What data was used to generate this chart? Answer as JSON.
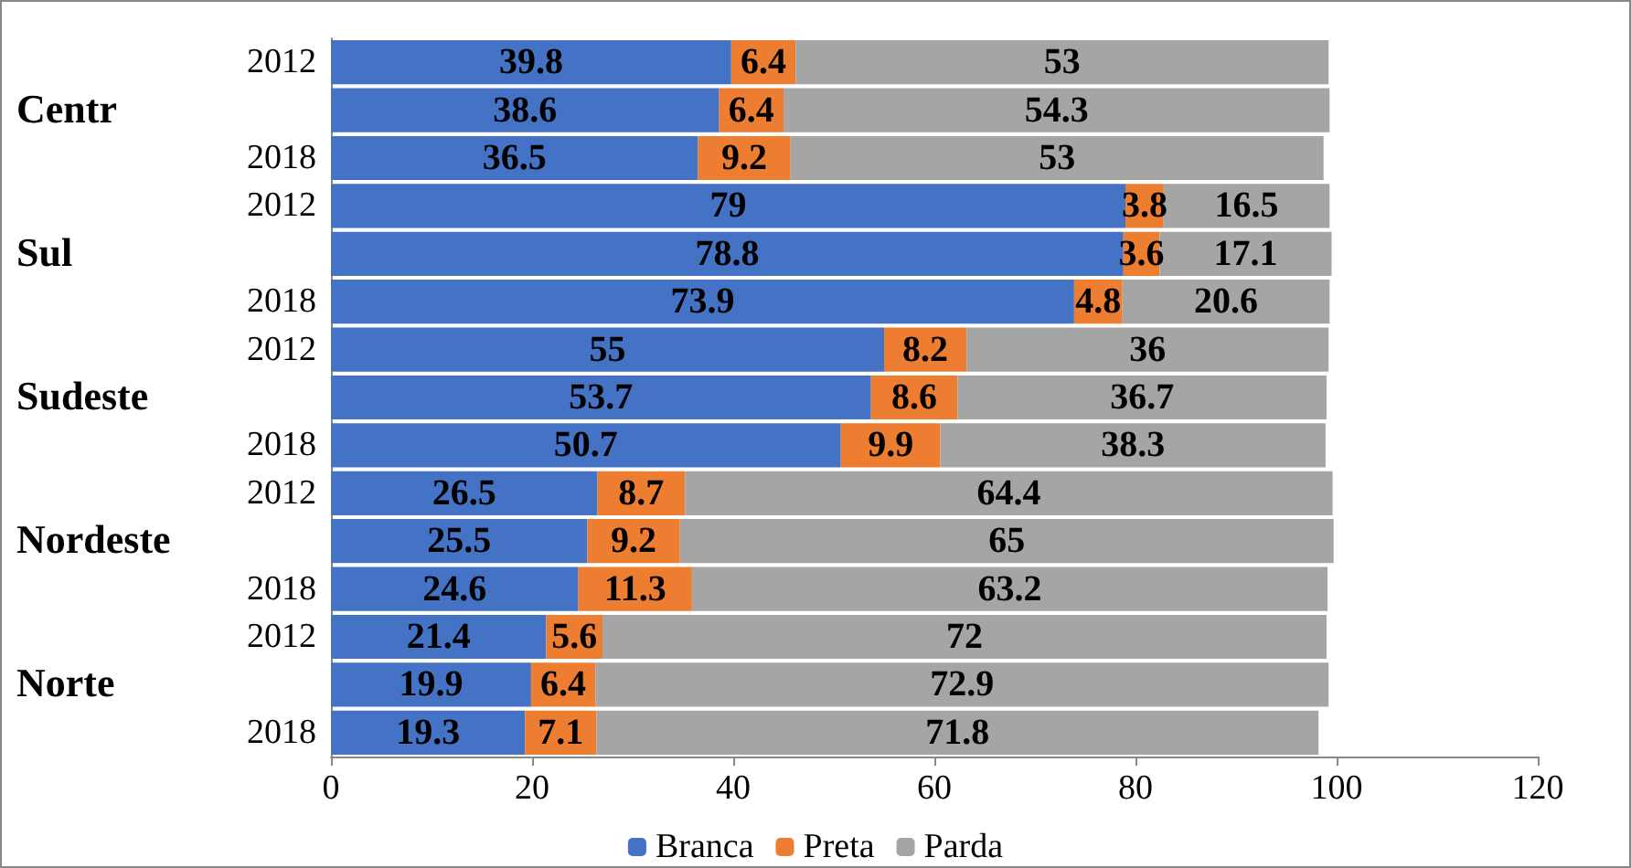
{
  "chart_data": {
    "type": "bar",
    "orientation": "horizontal",
    "stacked": true,
    "data_labels": true,
    "legend": "bottom",
    "grid": false,
    "categories": [
      "2012",
      null,
      "2018",
      "2012",
      null,
      "2018",
      "2012",
      null,
      "2018",
      "2012",
      null,
      "2018",
      "2012",
      null,
      "2018"
    ],
    "annotations": [
      "Centr",
      "Sul",
      "Sudeste",
      "Nordeste",
      "Norte"
    ],
    "xlim": [
      0,
      120
    ],
    "xticks": [
      0,
      20,
      40,
      60,
      80,
      100,
      120
    ],
    "series": [
      {
        "name": "Branca",
        "color": "#4472c4",
        "values": [
          39.8,
          38.6,
          36.5,
          79,
          78.8,
          73.9,
          55,
          53.7,
          50.7,
          26.5,
          25.5,
          24.6,
          21.4,
          19.9,
          19.3
        ]
      },
      {
        "name": "Preta",
        "color": "#ed7d31",
        "values": [
          6.4,
          6.4,
          9.2,
          3.8,
          3.6,
          4.8,
          8.2,
          8.6,
          9.9,
          8.7,
          9.2,
          11.3,
          5.6,
          6.4,
          7.1
        ]
      },
      {
        "name": "Parda",
        "color": "#a5a5a5",
        "values": [
          53,
          54.3,
          53,
          16.5,
          17.1,
          20.6,
          36,
          36.7,
          38.3,
          64.4,
          65,
          63.2,
          72,
          72.9,
          71.8
        ]
      }
    ]
  }
}
